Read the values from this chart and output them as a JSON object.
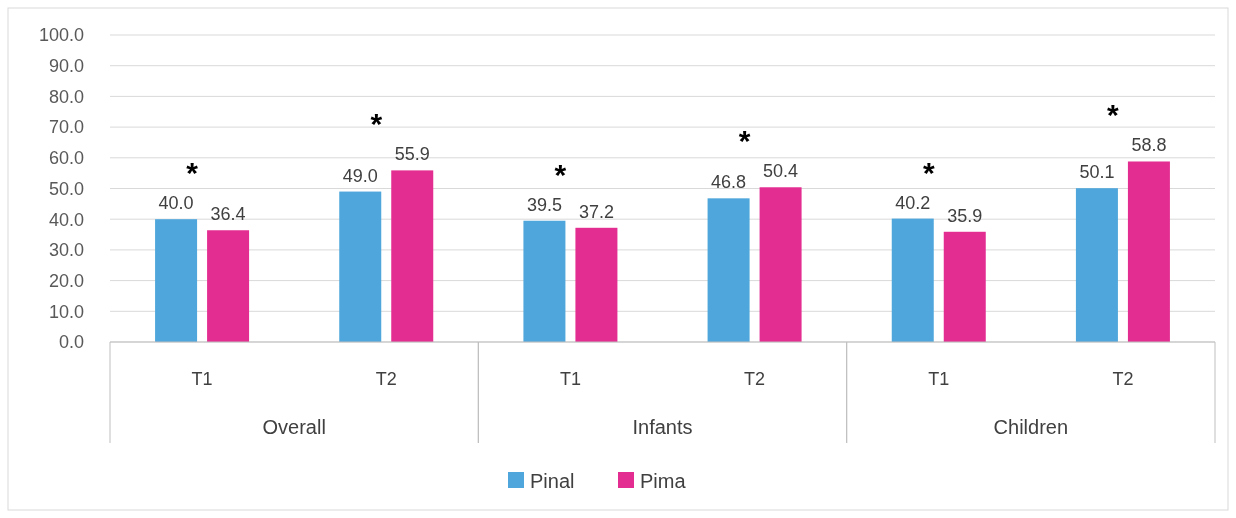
{
  "chart_data": {
    "type": "bar",
    "categories": [
      "T1",
      "T2",
      "T1",
      "T2",
      "T1",
      "T2"
    ],
    "series": [
      {
        "name": "Pinal",
        "color": "#4ea6dc",
        "values": [
          40.0,
          49.0,
          39.5,
          46.8,
          40.2,
          50.1
        ],
        "value_labels": [
          "40.0",
          "49.0",
          "39.5",
          "46.8",
          "40.2",
          "50.1"
        ]
      },
      {
        "name": "Pima",
        "color": "#e32d91",
        "values": [
          36.4,
          55.9,
          37.2,
          50.4,
          35.9,
          58.8
        ],
        "value_labels": [
          "36.4",
          "55.9",
          "37.2",
          "50.4",
          "35.9",
          "58.8"
        ]
      }
    ],
    "ylim": [
      0,
      100
    ],
    "yticks": [
      {
        "value": 0,
        "label": "0.0"
      },
      {
        "value": 10,
        "label": "10.0"
      },
      {
        "value": 20,
        "label": "20.0"
      },
      {
        "value": 30,
        "label": "30.0"
      },
      {
        "value": 40,
        "label": "40.0"
      },
      {
        "value": 50,
        "label": "50.0"
      },
      {
        "value": 60,
        "label": "60.0"
      },
      {
        "value": 70,
        "label": "70.0"
      },
      {
        "value": 80,
        "label": "80.0"
      },
      {
        "value": 90,
        "label": "90.0"
      },
      {
        "value": 100,
        "label": "100.0"
      }
    ],
    "grid": "y",
    "legend": "bottom",
    "annotations": [
      "*",
      "*",
      "*",
      "*",
      "*",
      "*",
      "Overall",
      "Infants",
      "Children"
    ]
  }
}
